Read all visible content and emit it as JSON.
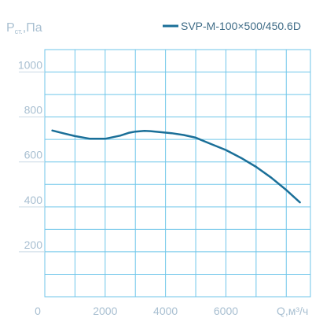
{
  "chart_data": {
    "type": "line",
    "ylabel_main": "P",
    "ylabel_sub": "ст.",
    "ylabel_unit": ",Па",
    "xlabel": "Q,м³/ч",
    "x_ticks": [
      "0",
      "2000",
      "4000",
      "6000"
    ],
    "y_ticks": [
      "200",
      "400",
      "600",
      "800",
      "1000"
    ],
    "xlim": [
      0,
      8800
    ],
    "ylim": [
      0,
      1100
    ],
    "grid": true,
    "legend_position": "top-right",
    "series": [
      {
        "name": "SVP-M-100×500/450.6D",
        "color": "#1a6f98",
        "x": [
          250,
          600,
          1000,
          1500,
          2000,
          2500,
          2800,
          3000,
          3300,
          3500,
          3800,
          4200,
          4600,
          5000,
          5500,
          6000,
          6500,
          7000,
          7500,
          8000,
          8450
        ],
        "y": [
          740,
          728,
          715,
          703,
          703,
          717,
          730,
          735,
          738,
          737,
          733,
          728,
          720,
          708,
          680,
          653,
          618,
          578,
          530,
          475,
          420
        ]
      }
    ]
  }
}
